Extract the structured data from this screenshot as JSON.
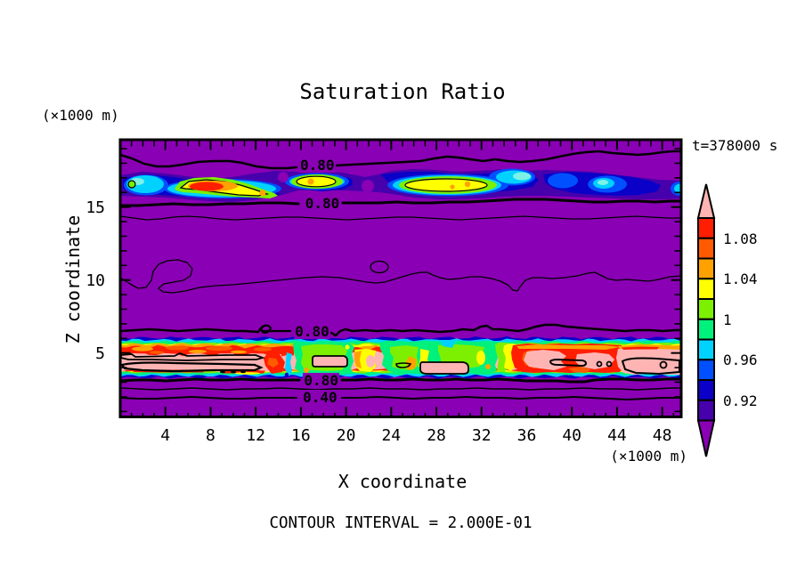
{
  "title": "Saturation Ratio",
  "time_annotation": "t=378000 s",
  "contour_note": "CONTOUR INTERVAL = 2.000E-01",
  "axes": {
    "x": {
      "label": "X coordinate",
      "unit": "(×1000 m)",
      "ticks": [
        4,
        8,
        12,
        16,
        20,
        24,
        28,
        32,
        36,
        40,
        44,
        48
      ]
    },
    "y": {
      "label": "Z coordinate",
      "unit": "(×1000 m)",
      "ticks": [
        5,
        10,
        15
      ]
    }
  },
  "colorbar": {
    "tick_labels": [
      {
        "value": 1.08,
        "text": "1.08"
      },
      {
        "value": 1.04,
        "text": "1.04"
      },
      {
        "value": 1.0,
        "text": "1"
      },
      {
        "value": 0.96,
        "text": "0.96"
      },
      {
        "value": 0.92,
        "text": "0.92"
      }
    ],
    "segments": [
      {
        "from": 1.1,
        "to": 1.12,
        "color": "#FFB4B4",
        "shape": "arrow-up"
      },
      {
        "from": 1.08,
        "to": 1.1,
        "color": "#FF1E00"
      },
      {
        "from": 1.06,
        "to": 1.08,
        "color": "#FF5A00"
      },
      {
        "from": 1.04,
        "to": 1.06,
        "color": "#FFA200"
      },
      {
        "from": 1.02,
        "to": 1.04,
        "color": "#FFFF00"
      },
      {
        "from": 1.0,
        "to": 1.02,
        "color": "#7CF000"
      },
      {
        "from": 0.98,
        "to": 1.0,
        "color": "#00F07C"
      },
      {
        "from": 0.96,
        "to": 0.98,
        "color": "#00D2FF"
      },
      {
        "from": 0.94,
        "to": 0.96,
        "color": "#0050FF"
      },
      {
        "from": 0.92,
        "to": 0.94,
        "color": "#0A00C8"
      },
      {
        "from": 0.9,
        "to": 0.92,
        "color": "#4600AC"
      },
      {
        "from": 0.88,
        "to": 0.9,
        "color": "#8A00B4",
        "shape": "arrow-down"
      }
    ]
  },
  "contour_labels": [
    {
      "text": "0.80",
      "x_km": 17.35,
      "z_km": 17.9
    },
    {
      "text": "0.80",
      "x_km": 17.8,
      "z_km": 15.25
    },
    {
      "text": "0.80",
      "x_km": 16.9,
      "z_km": 6.45
    },
    {
      "text": "0.80",
      "x_km": 17.7,
      "z_km": 3.15
    },
    {
      "text": "0.40",
      "x_km": 17.6,
      "z_km": 1.95
    }
  ],
  "chart_data": {
    "type": "heatmap",
    "subtype": "filled-contour",
    "title": "Saturation Ratio",
    "xlabel": "X coordinate",
    "ylabel": "Z coordinate",
    "x_unit_km": "(×1000 m)",
    "y_unit_km": "(×1000 m)",
    "x_ticks": [
      4,
      8,
      12,
      16,
      20,
      24,
      28,
      32,
      36,
      40,
      44,
      48
    ],
    "y_ticks": [
      5,
      10,
      15
    ],
    "x_range": [
      0,
      49.7
    ],
    "z_range": [
      0.6,
      19.6
    ],
    "time_annotation": "t=378000 s",
    "contour_interval": 0.2,
    "labeled_contours": [
      0.4,
      0.8
    ],
    "fill_levels": [
      0.9,
      0.92,
      0.94,
      0.96,
      0.98,
      1.0,
      1.02,
      1.04,
      1.06,
      1.08,
      1.1,
      1.12
    ],
    "background_value_band": "0.6-0.8 (purple)",
    "features": [
      {
        "name": "upper-cloud-band",
        "z_km": [
          16.0,
          17.6
        ],
        "description": "blue/cyan blobs with embedded warm (yellow-orange-red, ~1.02-1.10) elongated cores at x~6-13, 15-20, 25-33 km; blue patches at x~38-47 km"
      },
      {
        "name": "mid-contour",
        "z_km": [
          9.0,
          10.5
        ],
        "description": "wavy 0.6 contour line with small closed loops at x~4-6, 22-24 km"
      },
      {
        "name": "lower-saturated-band",
        "z_km": [
          3.3,
          6.0
        ],
        "description": "continuous band: thin navy/cyan/green/yellow/orange rims around red to pink (>1.10) cores; green (0.98-1.02) columns at x~15-21, 23-33 km; pink maxima outlined in black (1.2 contour)"
      },
      {
        "name": "near-surface-lines",
        "z_km": [
          1.3,
          3.2
        ],
        "description": "horizontal contour lines 0.80, 0.60, 0.40"
      }
    ]
  }
}
